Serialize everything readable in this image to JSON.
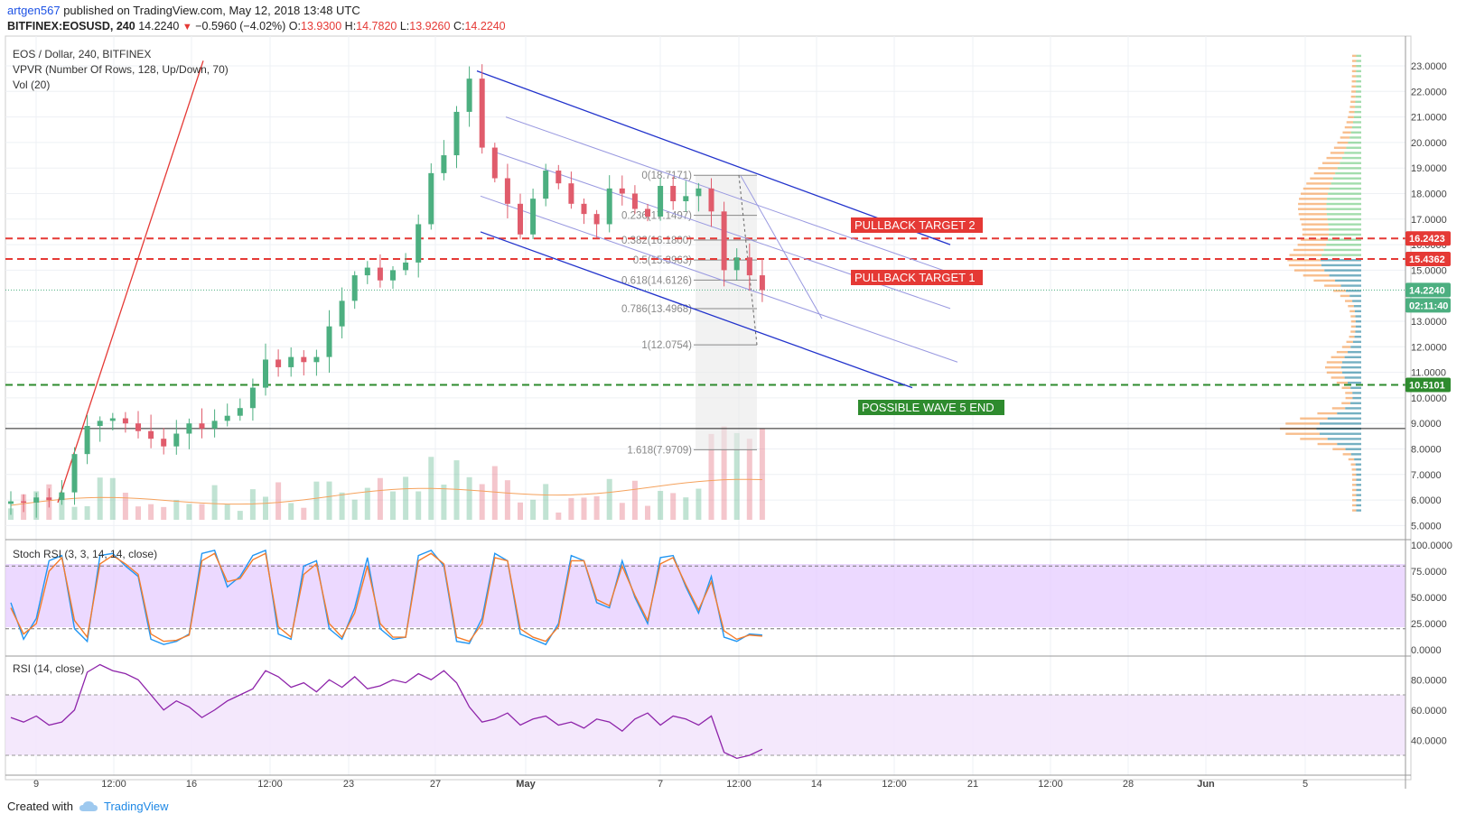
{
  "header": {
    "author": "artgen567",
    "published_text": "published on TradingView.com, May 12, 2018 13:48 UTC",
    "symbol": "BITFINEX:EOSUSD, 240",
    "last": "14.2240",
    "change": "−0.5960 (−4.02%)",
    "o_label": "O:",
    "o_value": "13.9300",
    "h_label": "H:",
    "h_value": "14.7820",
    "l_label": "L:",
    "l_value": "13.9260",
    "c_label": "C:",
    "c_value": "14.2240"
  },
  "legend": {
    "title": "EOS / Dollar, 240, BITFINEX",
    "vpvr": "VPVR (Number Of Rows, 128, Up/Down, 70)",
    "vol": "Vol (20)",
    "stoch": "Stoch RSI (3, 3, 14, 14, close)",
    "rsi": "RSI (14, close)"
  },
  "footer": {
    "created_with": "Created with",
    "brand": "TradingView"
  },
  "colors": {
    "up": "#4caf80",
    "down": "#e05c6c",
    "channel": "#2233cc",
    "channel_inner": "#9999e0",
    "red_dash": "#e53935",
    "green_dash": "#2e8b2e",
    "stoch_k": "#2196f3",
    "stoch_d": "#f57c2a",
    "rsi_line": "#8e24aa",
    "stoch_band": "#e6ccff",
    "rsi_band": "#f2e4fb"
  },
  "chart_data": [
    {
      "type": "candlestick",
      "pane": "price",
      "x_tick_labels": [
        "9",
        "12:00",
        "16",
        "12:00",
        "23",
        "27",
        "May",
        "7",
        "12:00",
        "14",
        "12:00",
        "21",
        "12:00",
        "28",
        "Jun",
        "5"
      ],
      "y_tick_labels": [
        "23.0000",
        "22.0000",
        "21.0000",
        "20.0000",
        "19.0000",
        "18.0000",
        "17.0000",
        "16.0000",
        "15.0000",
        "13.0000",
        "12.0000",
        "11.0000",
        "10.0000",
        "9.0000",
        "8.0000",
        "7.0000",
        "6.0000",
        "5.0000"
      ],
      "ylim": [
        4.9,
        23.3
      ],
      "close_path": [
        5.95,
        5.9,
        6.1,
        6.0,
        6.3,
        7.8,
        8.9,
        9.1,
        9.2,
        9.0,
        8.7,
        8.4,
        8.1,
        8.6,
        9.0,
        8.8,
        9.1,
        9.3,
        9.6,
        10.4,
        11.5,
        11.2,
        11.6,
        11.4,
        11.6,
        12.8,
        13.8,
        14.8,
        15.1,
        14.6,
        15.0,
        15.3,
        16.8,
        18.8,
        19.5,
        21.2,
        22.5,
        19.8,
        18.6,
        17.6,
        16.4,
        17.8,
        18.9,
        18.4,
        17.6,
        17.2,
        16.8,
        18.2,
        18.0,
        17.4,
        17.1,
        18.3,
        17.7,
        17.9,
        18.2,
        17.3,
        15.0,
        15.5,
        14.8,
        14.22
      ],
      "price_labels": [
        {
          "value": "16.2423",
          "color": "#e53935"
        },
        {
          "value": "15.4362",
          "color": "#e53935"
        },
        {
          "value": "14.2240",
          "color": "#4caf80"
        },
        {
          "value": "02:11:40",
          "color": "#4caf80"
        },
        {
          "value": "10.5101",
          "color": "#2e8b2e"
        }
      ],
      "horizontal_levels": [
        {
          "value": 16.2423,
          "style": "dashed",
          "color": "#e53935"
        },
        {
          "value": 15.4362,
          "style": "dashed",
          "color": "#e53935"
        },
        {
          "value": 10.5101,
          "style": "dashed",
          "color": "#2e8b2e"
        },
        {
          "value": 8.8,
          "style": "solid",
          "color": "#222222"
        }
      ],
      "fibonacci": [
        {
          "ratio": "0",
          "level": "0(18.7171)"
        },
        {
          "ratio": "0.236",
          "level": "0.236(17.1497)"
        },
        {
          "ratio": "0.382",
          "level": "0.382(16.1800)"
        },
        {
          "ratio": "0.5",
          "level": "0.5(15.3963)"
        },
        {
          "ratio": "0.618",
          "level": "0.618(14.6126)"
        },
        {
          "ratio": "0.786",
          "level": "0.786(13.4968)"
        },
        {
          "ratio": "1",
          "level": "1(12.0754)"
        },
        {
          "ratio": "1.618",
          "level": "1.618(7.9709)"
        }
      ],
      "annotations": [
        {
          "text": "PULLBACK TARGET 2",
          "color": "#e53935"
        },
        {
          "text": "PULLBACK TARGET 1",
          "color": "#e53935"
        },
        {
          "text": "POSSIBLE WAVE 5 END",
          "color": "#2e8b2e"
        }
      ]
    },
    {
      "type": "line",
      "pane": "stoch_rsi",
      "y_tick_labels": [
        "100.0000",
        "75.0000",
        "50.0000",
        "25.0000",
        "0.0000"
      ],
      "ylim": [
        0,
        100
      ],
      "bands": [
        80,
        20
      ],
      "series": [
        {
          "name": "K",
          "values": [
            45,
            10,
            30,
            85,
            90,
            20,
            8,
            90,
            92,
            80,
            70,
            10,
            5,
            8,
            15,
            92,
            95,
            60,
            70,
            90,
            95,
            15,
            10,
            80,
            85,
            20,
            10,
            40,
            88,
            20,
            10,
            12,
            90,
            95,
            80,
            8,
            6,
            30,
            92,
            85,
            15,
            10,
            5,
            25,
            90,
            85,
            45,
            40,
            85,
            50,
            25,
            88,
            90,
            60,
            35,
            70,
            12,
            8,
            15,
            14
          ]
        },
        {
          "name": "D",
          "values": [
            40,
            15,
            25,
            75,
            88,
            28,
            12,
            82,
            90,
            82,
            72,
            15,
            8,
            9,
            14,
            85,
            92,
            65,
            68,
            86,
            92,
            22,
            12,
            72,
            82,
            25,
            12,
            35,
            80,
            25,
            12,
            12,
            85,
            92,
            82,
            12,
            8,
            25,
            88,
            85,
            20,
            12,
            8,
            22,
            85,
            85,
            48,
            42,
            80,
            52,
            28,
            82,
            88,
            62,
            38,
            65,
            18,
            10,
            14,
            13
          ]
        }
      ]
    },
    {
      "type": "line",
      "pane": "rsi",
      "y_tick_labels": [
        "80.0000",
        "60.0000",
        "40.0000"
      ],
      "ylim": [
        22,
        97
      ],
      "bands": [
        70,
        30
      ],
      "series": [
        {
          "name": "RSI",
          "values": [
            55,
            52,
            56,
            50,
            52,
            60,
            85,
            90,
            86,
            84,
            80,
            70,
            60,
            66,
            62,
            55,
            60,
            66,
            70,
            74,
            86,
            82,
            75,
            78,
            72,
            80,
            75,
            82,
            74,
            76,
            80,
            78,
            84,
            80,
            86,
            78,
            62,
            52,
            54,
            58,
            50,
            54,
            56,
            50,
            52,
            48,
            54,
            52,
            46,
            54,
            58,
            50,
            56,
            54,
            50,
            56,
            32,
            28,
            30,
            34
          ]
        }
      ]
    }
  ]
}
